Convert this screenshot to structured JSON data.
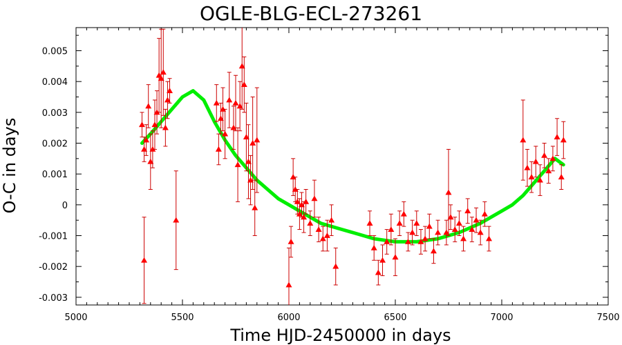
{
  "chart_data": {
    "type": "scatter",
    "title": "OGLE-BLG-ECL-273261",
    "xlabel": "Time HJD-2450000 in days",
    "ylabel": "O-C in days",
    "xlim": [
      5000,
      7500
    ],
    "ylim": [
      -0.00325,
      0.00575
    ],
    "x_ticks": [
      5000,
      5500,
      6000,
      6500,
      7000,
      7500
    ],
    "x_tick_labels": [
      "5000",
      "5500",
      "6000",
      "6500",
      "7000",
      "7500"
    ],
    "y_ticks": [
      -0.003,
      -0.002,
      -0.001,
      0,
      0.001,
      0.002,
      0.003,
      0.004,
      0.005
    ],
    "y_tick_labels": [
      "-0.003",
      "-0.002",
      "-0.001",
      "0",
      "0.001",
      "0.002",
      "0.003",
      "0.004",
      "0.005"
    ],
    "grid": false,
    "colors": {
      "points": "#ff0000",
      "error_bars": "#cc0000",
      "fit": "#00ee00"
    },
    "series": [
      {
        "kind": "points-with-error-bars",
        "x": [
          5310,
          5320,
          5330,
          5340,
          5350,
          5360,
          5370,
          5380,
          5390,
          5400,
          5410,
          5420,
          5430,
          5440,
          5470,
          5320,
          5660,
          5670,
          5680,
          5690,
          5700,
          5720,
          5740,
          5750,
          5760,
          5770,
          5780,
          5790,
          5800,
          5810,
          5820,
          5830,
          5840,
          5850,
          6020,
          6030,
          6040,
          6050,
          6060,
          6070,
          6080,
          6100,
          6120,
          6140,
          6160,
          6180,
          6200,
          6220,
          6000,
          6010,
          6380,
          6400,
          6420,
          6440,
          6460,
          6480,
          6500,
          6520,
          6540,
          6560,
          6580,
          6600,
          6620,
          6640,
          6660,
          6680,
          6700,
          6740,
          6760,
          6780,
          6800,
          6820,
          6840,
          6860,
          6880,
          6900,
          6920,
          6940,
          6750,
          7100,
          7120,
          7140,
          7160,
          7180,
          7200,
          7220,
          7240,
          7260,
          7280,
          7290
        ],
        "y": [
          0.0026,
          0.0018,
          0.0021,
          0.0032,
          0.0014,
          0.0018,
          0.0026,
          0.003,
          0.0042,
          0.0041,
          0.0043,
          0.0025,
          0.0034,
          0.0037,
          -0.0005,
          -0.0018,
          0.0033,
          0.0018,
          0.0028,
          0.0031,
          0.0023,
          0.0034,
          0.0025,
          0.0033,
          0.0013,
          0.0032,
          0.0045,
          0.0039,
          0.0022,
          0.0014,
          0.0008,
          0.002,
          -0.0001,
          0.0021,
          0.0009,
          0.0005,
          0.0001,
          -0.0003,
          0.0,
          -0.0004,
          0.0001,
          -0.0006,
          0.0002,
          -0.0008,
          -0.0011,
          -0.001,
          -0.0005,
          -0.002,
          -0.0026,
          -0.0012,
          -0.0006,
          -0.0014,
          -0.0022,
          -0.0018,
          -0.0012,
          -0.0008,
          -0.0017,
          -0.0006,
          -0.0003,
          -0.0012,
          -0.0009,
          -0.0006,
          -0.0012,
          -0.0011,
          -0.0007,
          -0.0015,
          -0.0009,
          -0.0009,
          -0.0004,
          -0.0008,
          -0.0006,
          -0.0011,
          -0.0002,
          -0.0008,
          -0.0005,
          -0.0009,
          -0.0003,
          -0.0011,
          0.0004,
          0.0021,
          0.0012,
          0.0009,
          0.0014,
          0.0008,
          0.0016,
          0.0011,
          0.0015,
          0.0022,
          0.0009,
          0.0021
        ],
        "errors": [
          0.0004,
          0.0004,
          0.0005,
          0.0007,
          0.0009,
          0.0006,
          0.0008,
          0.0007,
          0.0012,
          0.0016,
          0.0014,
          0.0006,
          0.0006,
          0.0004,
          0.0016,
          0.0014,
          0.0006,
          0.0005,
          0.0005,
          0.0007,
          0.0008,
          0.0009,
          0.0007,
          0.0009,
          0.0012,
          0.0008,
          0.0014,
          0.0009,
          0.0011,
          0.0012,
          0.0008,
          0.0015,
          0.0009,
          0.0017,
          0.0006,
          0.0004,
          0.0004,
          0.0005,
          0.0004,
          0.0005,
          0.0004,
          0.0004,
          0.0006,
          0.0004,
          0.0004,
          0.0005,
          0.0005,
          0.0006,
          0.0012,
          0.0005,
          0.0004,
          0.0004,
          0.0004,
          0.0005,
          0.0004,
          0.0005,
          0.0006,
          0.0004,
          0.0004,
          0.0003,
          0.0004,
          0.0004,
          0.0004,
          0.0004,
          0.0004,
          0.0004,
          0.0004,
          0.0004,
          0.0004,
          0.0004,
          0.0004,
          0.0004,
          0.0004,
          0.0004,
          0.0004,
          0.0004,
          0.0004,
          0.0004,
          0.0014,
          0.0013,
          0.0006,
          0.0005,
          0.0005,
          0.0005,
          0.0004,
          0.0004,
          0.0004,
          0.0006,
          0.0004,
          0.0006
        ]
      },
      {
        "kind": "fit-curve",
        "x": [
          5310,
          5350,
          5400,
          5450,
          5500,
          5550,
          5600,
          5650,
          5700,
          5750,
          5800,
          5850,
          5900,
          5950,
          6000,
          6050,
          6100,
          6150,
          6200,
          6250,
          6300,
          6350,
          6400,
          6450,
          6500,
          6550,
          6600,
          6650,
          6700,
          6750,
          6800,
          6850,
          6900,
          6950,
          7000,
          7050,
          7100,
          7150,
          7200,
          7250,
          7290
        ],
        "y": [
          0.002,
          0.0023,
          0.0027,
          0.0031,
          0.0035,
          0.0037,
          0.0034,
          0.0027,
          0.0021,
          0.0016,
          0.0012,
          0.0008,
          0.0005,
          0.0002,
          0.0,
          -0.0002,
          -0.0004,
          -0.0006,
          -0.0007,
          -0.0008,
          -0.0009,
          -0.001,
          -0.0011,
          -0.00115,
          -0.0012,
          -0.0012,
          -0.0012,
          -0.00115,
          -0.0011,
          -0.001,
          -0.0009,
          -0.00075,
          -0.0006,
          -0.0004,
          -0.0002,
          0.0,
          0.0003,
          0.0007,
          0.0011,
          0.0015,
          0.0013
        ]
      }
    ]
  }
}
